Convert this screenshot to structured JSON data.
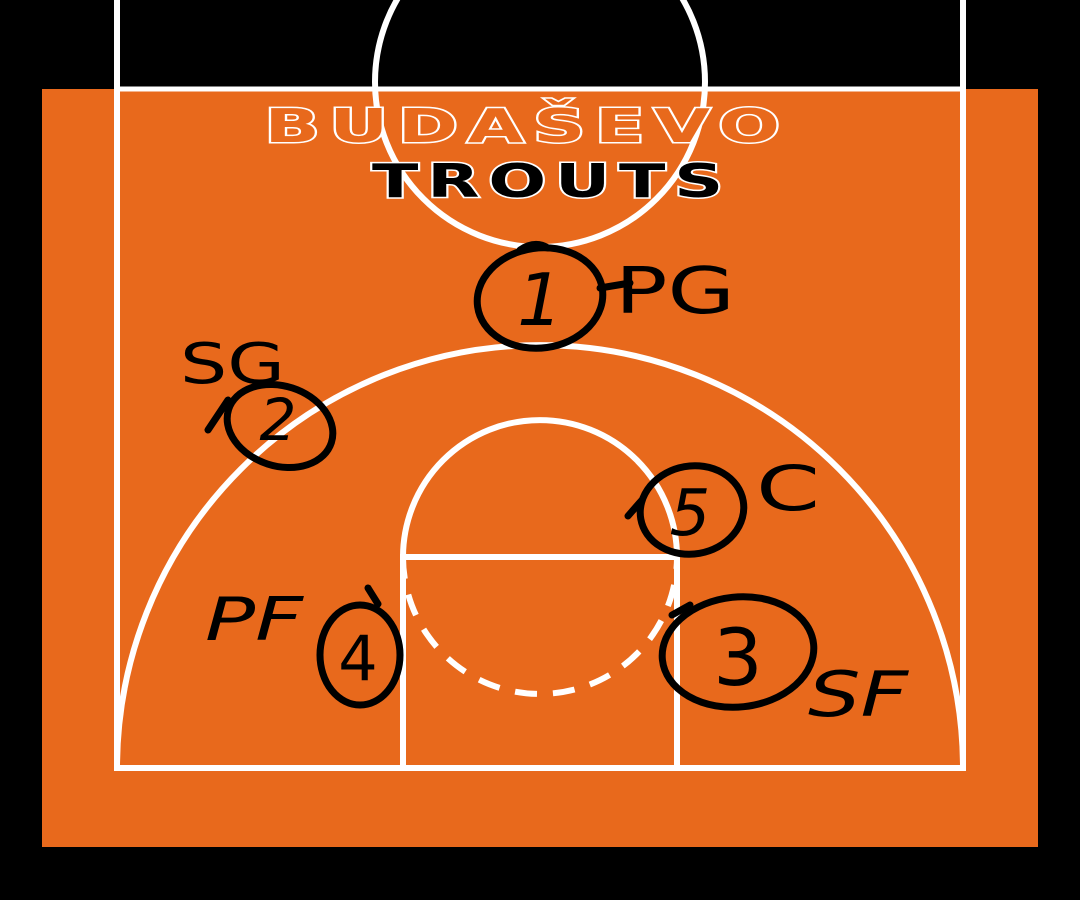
{
  "team": {
    "name_line1": "BUDAŠEVO",
    "name_line2": "TROUTS"
  },
  "colors": {
    "background": "#000000",
    "court": "#e8691c",
    "lines": "#ffffff",
    "marker": "#000000"
  },
  "players": [
    {
      "number": "1",
      "position": "PG"
    },
    {
      "number": "2",
      "position": "SG"
    },
    {
      "number": "3",
      "position": "SF"
    },
    {
      "number": "4",
      "position": "PF"
    },
    {
      "number": "5",
      "position": "C"
    }
  ]
}
